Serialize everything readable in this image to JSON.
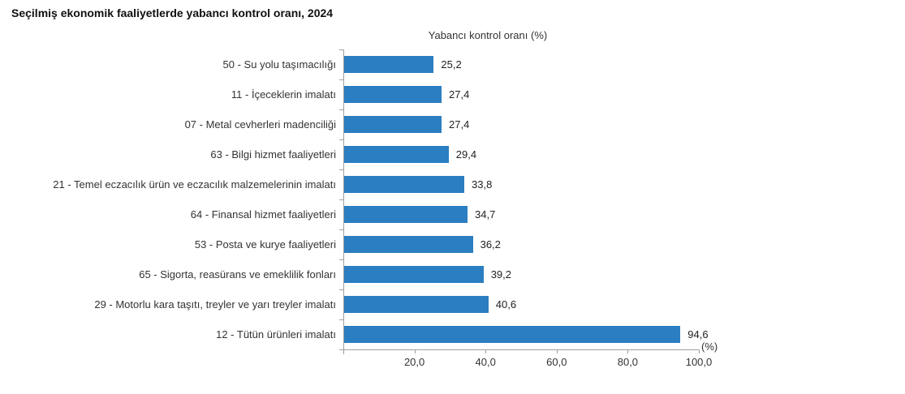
{
  "title": "Seçilmiş ekonomik faaliyetlerde yabancı kontrol oranı, 2024",
  "chart_data": {
    "type": "bar",
    "orientation": "horizontal",
    "title": "Seçilmiş ekonomik faaliyetlerde yabancı kontrol oranı, 2024",
    "axis_header": "Yabancı kontrol oranı (%)",
    "unit_label": "(%)",
    "categories": [
      "50 - Su yolu taşımacılığı",
      "11 - İçeceklerin imalatı",
      "07 - Metal cevherleri madenciliği",
      "63 - Bilgi hizmet faaliyetleri",
      "21 - Temel eczacılık ürün ve eczacılık malzemelerinin imalatı",
      "64 - Finansal hizmet faaliyetleri",
      "53 - Posta ve kurye faaliyetleri",
      "65 - Sigorta, reasürans ve emeklilik fonları",
      "29 - Motorlu kara taşıtı, treyler ve yarı treyler imalatı",
      "12 - Tütün ürünleri imalatı"
    ],
    "values": [
      25.2,
      27.4,
      27.4,
      29.4,
      33.8,
      34.7,
      36.2,
      39.2,
      40.6,
      94.6
    ],
    "value_labels": [
      "25,2",
      "27,4",
      "27,4",
      "29,4",
      "33,8",
      "34,7",
      "36,2",
      "39,2",
      "40,6",
      "94,6"
    ],
    "x_ticks": [
      20,
      40,
      60,
      80,
      100
    ],
    "x_tick_labels": [
      "20,0",
      "40,0",
      "60,0",
      "80,0",
      "100,0"
    ],
    "xlim": [
      0,
      100
    ],
    "grid": false,
    "legend": null,
    "bar_color": "#2b7ec1",
    "axis_color": "#a0a0a0",
    "text_color": "#333333"
  }
}
